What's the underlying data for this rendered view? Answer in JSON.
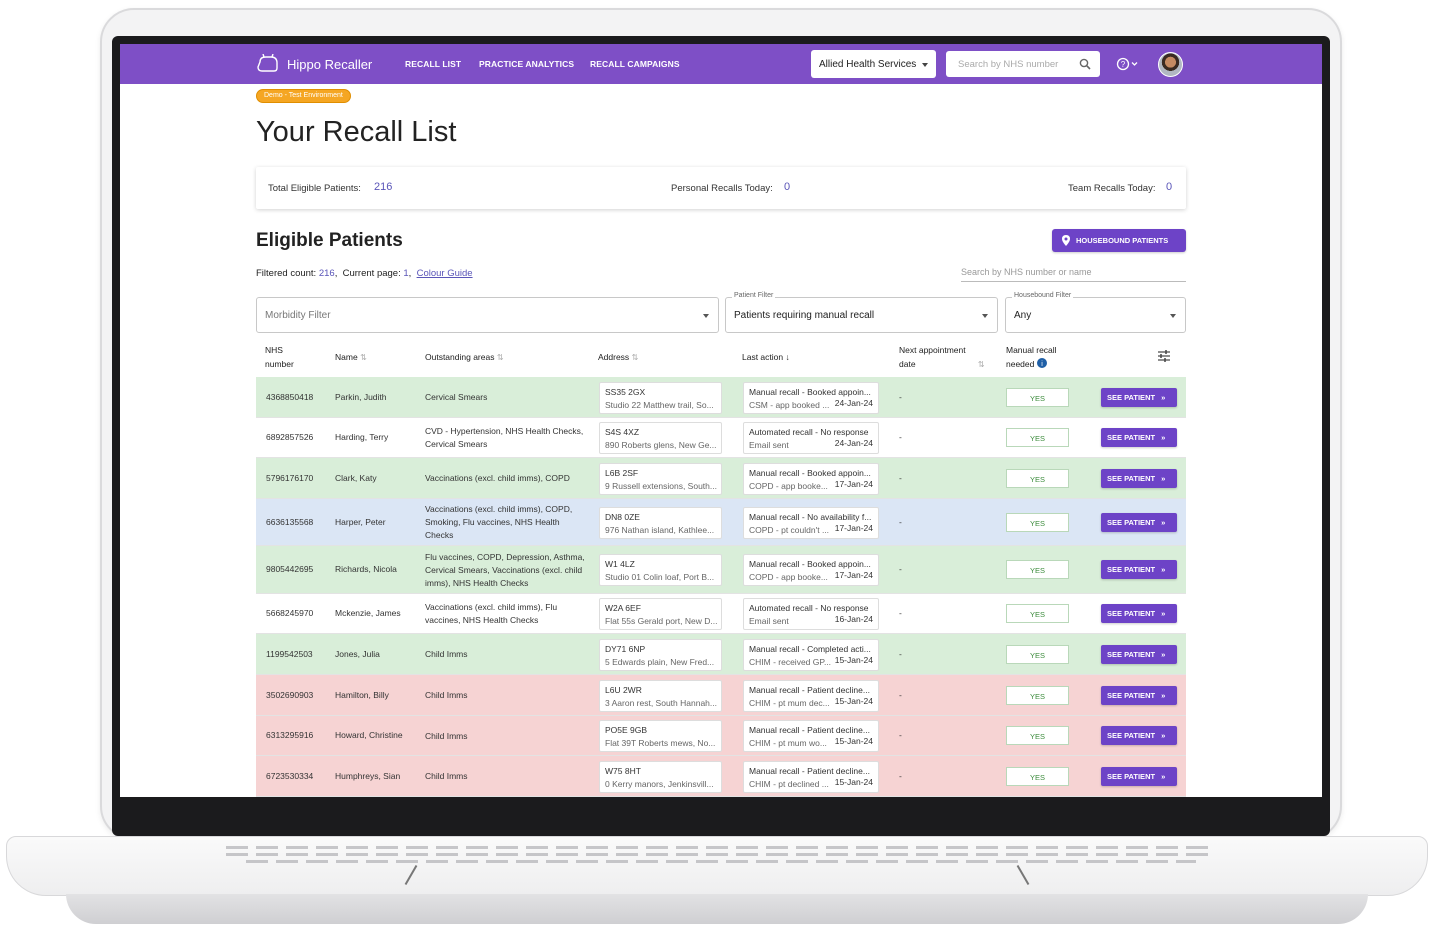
{
  "app": {
    "title": "Hippo Recaller",
    "nav": [
      "RECALL LIST",
      "PRACTICE ANALYTICS",
      "RECALL CAMPAIGNS"
    ],
    "service_selected": "Allied Health Services",
    "nhs_search_placeholder": "Search by NHS number",
    "help_icon": "help-circle-icon",
    "brand_color": "#7e4fc6"
  },
  "env_badge": "Demo - Test Environment",
  "page_title": "Your Recall List",
  "summary": {
    "total_label": "Total Eligible Patients:",
    "total_value": "216",
    "personal_label": "Personal Recalls Today:",
    "personal_value": "0",
    "team_label": "Team Recalls Today:",
    "team_value": "0"
  },
  "section": {
    "title": "Eligible Patients",
    "housebound_button": "HOUSEBOUND PATIENTS",
    "filtered_label": "Filtered count:",
    "filtered_value": "216",
    "page_label": "Current page:",
    "page_value": "1",
    "colour_guide": "Colour Guide",
    "table_search_placeholder": "Search by NHS number or name"
  },
  "filters": {
    "morbidity_placeholder": "Morbidity Filter",
    "patient_label": "Patient Filter",
    "patient_value": "Patients requiring manual recall",
    "housebound_label": "Housebound Filter",
    "housebound_value": "Any"
  },
  "table": {
    "headers": {
      "nhs_line1": "NHS",
      "nhs_line2": "number",
      "name": "Name",
      "areas": "Outstanding areas",
      "address": "Address",
      "last_action": "Last action",
      "next_appt_line1": "Next appointment",
      "next_appt_line2": "date",
      "manual_line1": "Manual recall",
      "manual_line2": "needed"
    },
    "row_colors": {
      "green": "#d9eed9",
      "white": "#ffffff",
      "blue": "#dbe6f5",
      "red": "#f6d3d3"
    },
    "rows": [
      {
        "nhs": "4368850418",
        "name": "Parkin, Judith",
        "areas": "Cervical Smears",
        "postcode": "SS35 2GX",
        "address": "Studio 22 Matthew trail, So...",
        "action": "Manual recall - Booked appoin...",
        "action_sub": "CSM - app booked ...",
        "date": "24-Jan-24",
        "next": "-",
        "manual": "YES",
        "button": "SEE PATIENT",
        "color": "green"
      },
      {
        "nhs": "6892857526",
        "name": "Harding, Terry",
        "areas": "CVD - Hypertension, NHS Health Checks, Cervical Smears",
        "postcode": "S4S 4XZ",
        "address": "890 Roberts glens, New Ge...",
        "action": "Automated recall - No response",
        "action_sub": "Email sent",
        "date": "24-Jan-24",
        "next": "-",
        "manual": "YES",
        "button": "SEE PATIENT",
        "color": "white"
      },
      {
        "nhs": "5796176170",
        "name": "Clark, Katy",
        "areas": "Vaccinations (excl. child imms), COPD",
        "postcode": "L6B 2SF",
        "address": "9 Russell extensions, South...",
        "action": "Manual recall - Booked appoin...",
        "action_sub": "COPD - app booke...",
        "date": "17-Jan-24",
        "next": "-",
        "manual": "YES",
        "button": "SEE PATIENT",
        "color": "green"
      },
      {
        "nhs": "6636135568",
        "name": "Harper, Peter",
        "areas": "Vaccinations (excl. child imms), COPD, Smoking, Flu vaccines, NHS Health Checks",
        "postcode": "DN8 0ZE",
        "address": "976 Nathan island, Kathlee...",
        "action": "Manual recall - No availability f...",
        "action_sub": "COPD - pt couldn't ...",
        "date": "17-Jan-24",
        "next": "-",
        "manual": "YES",
        "button": "SEE PATIENT",
        "color": "blue"
      },
      {
        "nhs": "9805442695",
        "name": "Richards, Nicola",
        "areas": "Flu vaccines, COPD, Depression, Asthma, Cervical Smears, Vaccinations (excl. child imms), NHS Health Checks",
        "postcode": "W1 4LZ",
        "address": "Studio 01 Colin loaf, Port B...",
        "action": "Manual recall - Booked appoin...",
        "action_sub": "COPD - app booke...",
        "date": "17-Jan-24",
        "next": "-",
        "manual": "YES",
        "button": "SEE PATIENT",
        "color": "green"
      },
      {
        "nhs": "5668245970",
        "name": "Mckenzie, James",
        "areas": "Vaccinations (excl. child imms), Flu vaccines, NHS Health Checks",
        "postcode": "W2A 6EF",
        "address": "Flat 55s Gerald port, New D...",
        "action": "Automated recall - No response",
        "action_sub": "Email sent",
        "date": "16-Jan-24",
        "next": "-",
        "manual": "YES",
        "button": "SEE PATIENT",
        "color": "white"
      },
      {
        "nhs": "1199542503",
        "name": "Jones, Julia",
        "areas": "Child Imms",
        "postcode": "DY71 6NP",
        "address": "5 Edwards plain, New Fred...",
        "action": "Manual recall - Completed acti...",
        "action_sub": "CHIM - received GP...",
        "date": "15-Jan-24",
        "next": "-",
        "manual": "YES",
        "button": "SEE PATIENT",
        "color": "green"
      },
      {
        "nhs": "3502690903",
        "name": "Hamilton, Billy",
        "areas": "Child Imms",
        "postcode": "L6U 2WR",
        "address": "3 Aaron rest, South Hannah...",
        "action": "Manual recall - Patient decline...",
        "action_sub": "CHIM - pt mum dec...",
        "date": "15-Jan-24",
        "next": "-",
        "manual": "YES",
        "button": "SEE PATIENT",
        "color": "red"
      },
      {
        "nhs": "6313295916",
        "name": "Howard, Christine",
        "areas": "Child Imms",
        "postcode": "PO5E 9GB",
        "address": "Flat 39T Roberts mews, No...",
        "action": "Manual recall - Patient decline...",
        "action_sub": "CHIM - pt mum wo...",
        "date": "15-Jan-24",
        "next": "-",
        "manual": "YES",
        "button": "SEE PATIENT",
        "color": "red"
      },
      {
        "nhs": "6723530334",
        "name": "Humphreys, Sian",
        "areas": "Child Imms",
        "postcode": "W75 8HT",
        "address": "0 Kerry manors, Jenkinsvill...",
        "action": "Manual recall - Patient decline...",
        "action_sub": "CHIM - pt declined ...",
        "date": "15-Jan-24",
        "next": "-",
        "manual": "YES",
        "button": "SEE PATIENT",
        "color": "red"
      }
    ]
  }
}
